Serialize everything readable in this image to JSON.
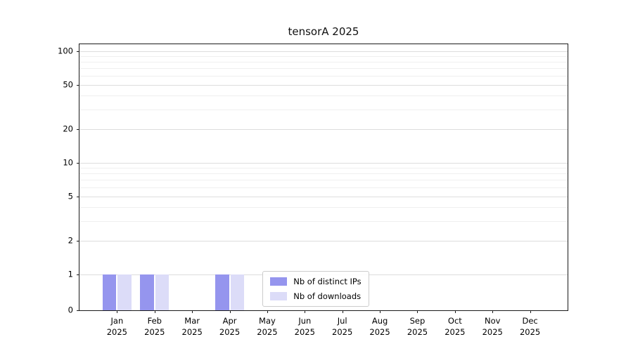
{
  "chart_data": {
    "type": "bar",
    "title": "tensorA 2025",
    "year": "2025",
    "categories": [
      "Jan",
      "Feb",
      "Mar",
      "Apr",
      "May",
      "Jun",
      "Jul",
      "Aug",
      "Sep",
      "Oct",
      "Nov",
      "Dec"
    ],
    "series": [
      {
        "name": "Nb of distinct IPs",
        "color": "#9595ee",
        "values": [
          1,
          1,
          0,
          1,
          0,
          0,
          0,
          0,
          0,
          0,
          0,
          0
        ]
      },
      {
        "name": "Nb of downloads",
        "color": "#dcdcf8",
        "values": [
          1,
          1,
          0,
          1,
          0,
          0,
          0,
          0,
          0,
          0,
          0,
          0
        ]
      }
    ],
    "yaxis": {
      "scale": "log-with-zero",
      "ticks": [
        0,
        1,
        2,
        5,
        10,
        20,
        50,
        100
      ],
      "minor_gridlines": [
        3,
        4,
        6,
        7,
        8,
        9,
        30,
        40,
        60,
        70,
        80,
        90
      ]
    },
    "ylim": [
      0,
      100
    ],
    "grid": "horizontal",
    "legend_position": "lower center"
  }
}
